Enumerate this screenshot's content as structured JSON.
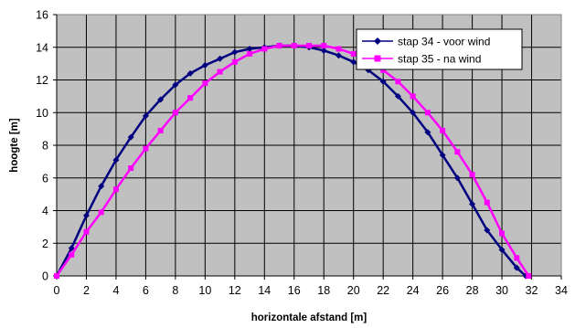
{
  "chart_data": {
    "type": "scatter",
    "title": "",
    "xlabel": "horizontale afstand [m]",
    "ylabel": "hoogte [m]",
    "xlim": [
      0,
      34
    ],
    "ylim": [
      0,
      16
    ],
    "xticks": [
      0,
      2,
      4,
      6,
      8,
      10,
      12,
      14,
      16,
      18,
      20,
      22,
      24,
      26,
      28,
      30,
      32,
      34
    ],
    "yticks": [
      0,
      2,
      4,
      6,
      8,
      10,
      12,
      14,
      16
    ],
    "grid": true,
    "plot_background": "#c0c0c0",
    "legend_position": "top-right",
    "series": [
      {
        "name": "stap 34 - voor wind",
        "color": "#000080",
        "marker": "diamond",
        "x": [
          0,
          1,
          2,
          3,
          4,
          5,
          6,
          7,
          8,
          9,
          10,
          11,
          12,
          13,
          14,
          15,
          16,
          17,
          18,
          19,
          20,
          21,
          22,
          23,
          24,
          25,
          26,
          27,
          28,
          29,
          30,
          31,
          31.6
        ],
        "y": [
          0,
          1.7,
          3.7,
          5.5,
          7.1,
          8.5,
          9.8,
          10.8,
          11.7,
          12.4,
          12.9,
          13.3,
          13.7,
          13.9,
          14.0,
          14.1,
          14.1,
          14.0,
          13.8,
          13.5,
          13.1,
          12.6,
          11.9,
          11.0,
          10.0,
          8.8,
          7.4,
          6.0,
          4.4,
          2.8,
          1.6,
          0.5,
          0
        ]
      },
      {
        "name": "stap 35 - na wind",
        "color": "#ff00ff",
        "marker": "square",
        "x": [
          0,
          1,
          2,
          3,
          4,
          5,
          6,
          7,
          8,
          9,
          10,
          11,
          12,
          13,
          14,
          15,
          16,
          17,
          18,
          19,
          20,
          21,
          22,
          23,
          24,
          25,
          26,
          27,
          28,
          29,
          30,
          31,
          31.8
        ],
        "y": [
          0,
          1.3,
          2.7,
          3.9,
          5.3,
          6.6,
          7.8,
          8.9,
          10.0,
          10.9,
          11.8,
          12.5,
          13.1,
          13.6,
          13.9,
          14.1,
          14.1,
          14.1,
          14.1,
          13.9,
          13.6,
          13.2,
          12.6,
          11.9,
          11.0,
          10.0,
          8.9,
          7.6,
          6.2,
          4.5,
          2.6,
          1.1,
          0
        ]
      }
    ]
  }
}
